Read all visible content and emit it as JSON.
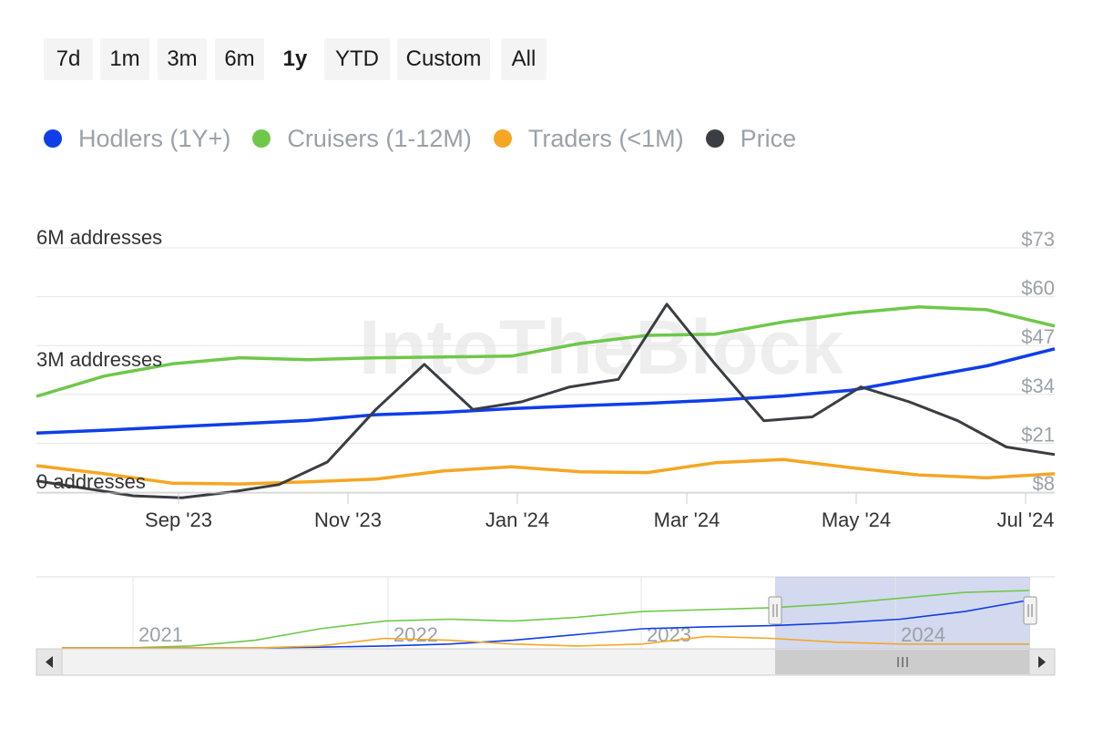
{
  "range_buttons": [
    {
      "label": "7d",
      "selected": false
    },
    {
      "label": "1m",
      "selected": false
    },
    {
      "label": "3m",
      "selected": false
    },
    {
      "label": "6m",
      "selected": false
    },
    {
      "label": "1y",
      "selected": true
    },
    {
      "label": "YTD",
      "selected": false
    },
    {
      "label": "Custom",
      "selected": false
    },
    {
      "label": "All",
      "selected": false
    }
  ],
  "legend": [
    {
      "label": "Hodlers (1Y+)",
      "color": "#0f3ee8"
    },
    {
      "label": "Cruisers (1-12M)",
      "color": "#6ec84a"
    },
    {
      "label": "Traders (<1M)",
      "color": "#f5a623"
    },
    {
      "label": "Price",
      "color": "#3a3d42"
    }
  ],
  "watermark": "IntoTheBlock",
  "chart_data": {
    "type": "line",
    "x_labels": [
      "Sep '23",
      "Nov '23",
      "Jan '24",
      "Mar '24",
      "May '24",
      "Jul '24"
    ],
    "y_left": {
      "labels": [
        "6M addresses",
        "3M addresses",
        "0 addresses"
      ],
      "range": [
        0,
        6000000
      ]
    },
    "y_right": {
      "labels": [
        "$73",
        "$60",
        "$47",
        "$34",
        "$21",
        "$8"
      ],
      "range": [
        8,
        73
      ]
    },
    "series": [
      {
        "name": "Hodlers (1Y+)",
        "axis": "left",
        "color": "#0f3ee8",
        "values": [
          1.45,
          1.52,
          1.6,
          1.68,
          1.76,
          1.9,
          1.96,
          2.05,
          2.12,
          2.18,
          2.26,
          2.36,
          2.5,
          2.8,
          3.1,
          3.52
        ]
      },
      {
        "name": "Cruisers (1-12M)",
        "axis": "left",
        "color": "#6ec84a",
        "values": [
          2.35,
          2.85,
          3.15,
          3.3,
          3.25,
          3.3,
          3.32,
          3.34,
          3.65,
          3.85,
          3.88,
          4.18,
          4.4,
          4.55,
          4.48,
          4.08
        ]
      },
      {
        "name": "Traders (<1M)",
        "axis": "left",
        "color": "#f5a623",
        "values": [
          0.65,
          0.45,
          0.22,
          0.2,
          0.25,
          0.32,
          0.52,
          0.62,
          0.5,
          0.48,
          0.72,
          0.8,
          0.6,
          0.42,
          0.35,
          0.45
        ]
      },
      {
        "name": "Price",
        "axis": "right",
        "color": "#3a3d42",
        "values": [
          11,
          9,
          7,
          6.5,
          8,
          10,
          16,
          30,
          42,
          30,
          32,
          36,
          38,
          58,
          42,
          27,
          28,
          36,
          32,
          27,
          20,
          18
        ]
      }
    ],
    "navigator": {
      "x_labels": [
        "2021",
        "2022",
        "2023",
        "2024"
      ],
      "series": [
        {
          "name": "Cruisers (1-12M)",
          "color": "#6ec84a",
          "values": [
            0,
            0,
            0.05,
            0.2,
            0.5,
            0.7,
            0.75,
            0.7,
            0.8,
            0.95,
            1.0,
            1.05,
            1.15,
            1.3,
            1.45,
            1.5
          ]
        },
        {
          "name": "Hodlers (1Y+)",
          "color": "#0f3ee8",
          "values": [
            0,
            0,
            0,
            0,
            0.02,
            0.05,
            0.1,
            0.2,
            0.35,
            0.5,
            0.55,
            0.58,
            0.65,
            0.75,
            0.95,
            1.25
          ]
        },
        {
          "name": "Traders (<1M)",
          "color": "#f5a623",
          "values": [
            0,
            0,
            0,
            0,
            0.05,
            0.25,
            0.2,
            0.1,
            0.05,
            0.1,
            0.3,
            0.25,
            0.15,
            0.1,
            0.1,
            0.1
          ]
        }
      ]
    }
  }
}
